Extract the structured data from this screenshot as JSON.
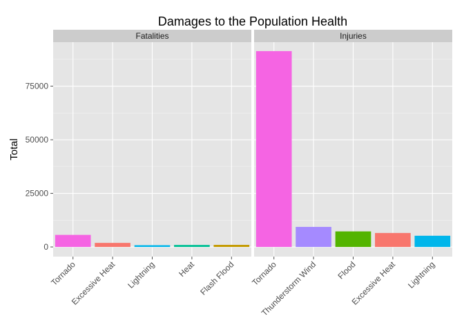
{
  "chart_data": {
    "type": "bar",
    "title": "Damages to the Population Health",
    "xlabel": "",
    "ylabel": "Total",
    "ylim": [
      -4500,
      95500
    ],
    "yticks": [
      0,
      25000,
      50000,
      75000
    ],
    "ytick_labels": [
      "0",
      "25000",
      "50000",
      "75000"
    ],
    "grid": true,
    "facet_strip": "top",
    "panels": [
      {
        "name": "Fatalities",
        "categories": [
          "Tornado",
          "Excessive Heat",
          "Lightning",
          "Heat",
          "Flash Flood"
        ],
        "values": [
          5633,
          1903,
          816,
          937,
          978
        ],
        "colors": [
          "#F564E3",
          "#F8766D",
          "#00B6EB",
          "#00C094",
          "#C49A00"
        ]
      },
      {
        "name": "Injuries",
        "categories": [
          "Tornado",
          "Thunderstorm Wind",
          "Flood",
          "Excessive Heat",
          "Lightning"
        ],
        "values": [
          91346,
          9353,
          7259,
          6525,
          5230
        ],
        "colors": [
          "#F564E3",
          "#A58AFF",
          "#53B400",
          "#F8766D",
          "#00B6EB"
        ]
      }
    ]
  },
  "colors": {
    "panel_background": "#E5E5E5",
    "gridline": "#FFFFFF",
    "strip_background": "#CCCCCC"
  }
}
